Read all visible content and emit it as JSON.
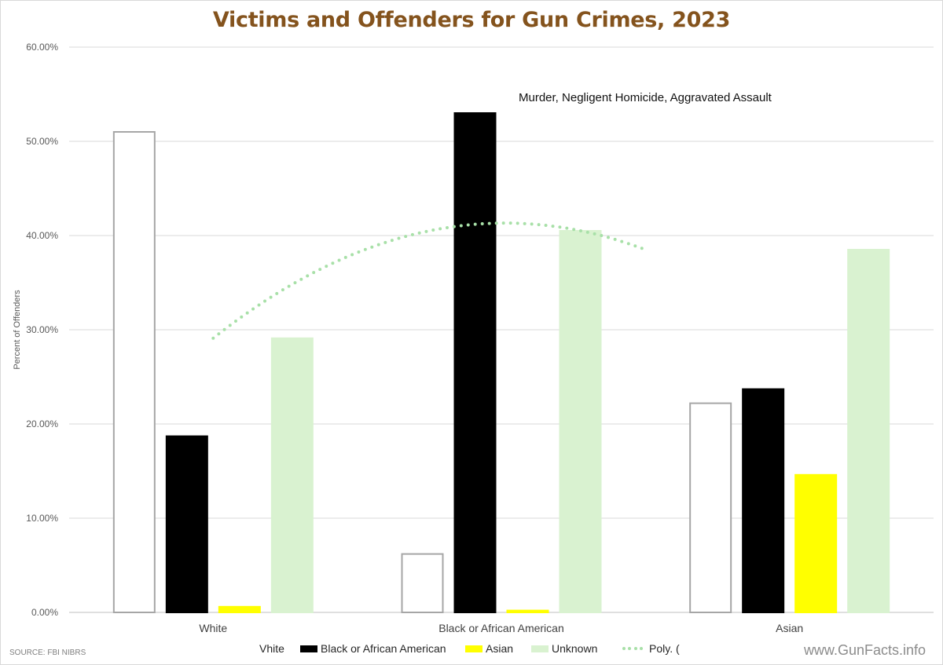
{
  "chart_data": {
    "type": "bar",
    "title": "Victims and Offenders for Gun Crimes, 2023",
    "subtitle": "Murder, Negligent Homicide, Aggravated Assault",
    "xlabel": "",
    "ylabel": "Percent of Offenders",
    "ylim": [
      0,
      60
    ],
    "yticks": [
      "0.00%",
      "10.00%",
      "20.00%",
      "30.00%",
      "40.00%",
      "50.00%",
      "60.00%"
    ],
    "grid": true,
    "legend_position": "bottom",
    "categories": [
      "White",
      "Black or African American",
      "Asian"
    ],
    "series": [
      {
        "name": "Vhite",
        "values": [
          51.0,
          6.2,
          22.2
        ],
        "fill": "#ffffff",
        "stroke": "#a6a6a6"
      },
      {
        "name": "Black or African American",
        "values": [
          18.7,
          53.0,
          23.7
        ],
        "fill": "#000000",
        "stroke": "#000000"
      },
      {
        "name": "Asian",
        "values": [
          0.6,
          0.2,
          14.6
        ],
        "fill": "#ffff00",
        "stroke": "#ffff00"
      },
      {
        "name": "Unknown",
        "values": [
          29.1,
          40.5,
          38.5
        ],
        "fill": "#d9f2d0",
        "stroke": "#d9f2d0"
      }
    ],
    "trendline": {
      "name": "Poly. (",
      "style": "dotted",
      "color": "#a8e0a8",
      "points": [
        [
          1,
          29.1
        ],
        [
          1.75,
          40.5
        ],
        [
          2.5,
          38.5
        ]
      ]
    }
  },
  "source": "SOURCE: FBI NIBRS",
  "watermark": "www.GunFacts.info"
}
